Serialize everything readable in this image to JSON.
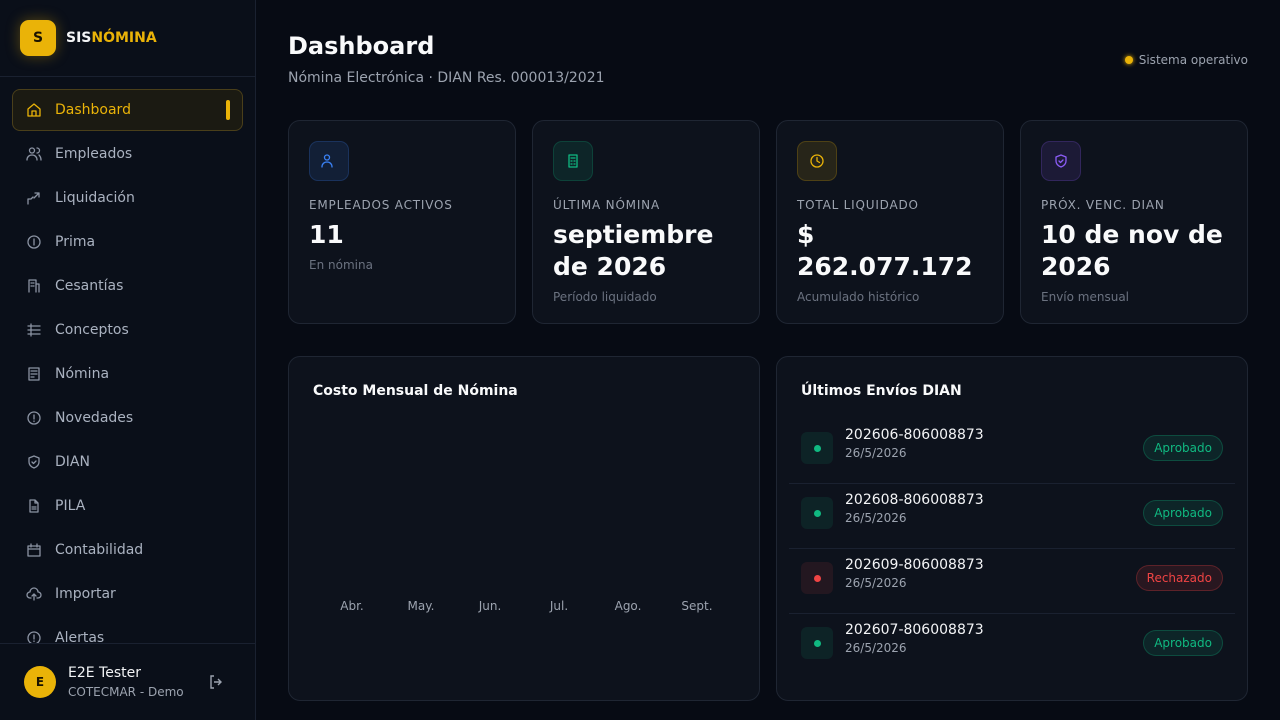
{
  "sidebar": {
    "logo_letter": "S",
    "brand_prefix": "SIS",
    "brand_suffix": "NÓMINA",
    "active_index": 0,
    "nav": [
      "Dashboard",
      "Empleados",
      "Liquidación",
      "Prima",
      "Cesantías",
      "Conceptos",
      "Nómina",
      "Novedades",
      "DIAN",
      "PILA",
      "Contabilidad",
      "Importar",
      "Alertas"
    ],
    "user": {
      "avatar": "E",
      "name": "E2E Tester",
      "org": "COTECMAR - Demo"
    }
  },
  "header": {
    "title": "Dashboard",
    "subtitle": "Nómina Electrónica · DIAN Res. 000013/2021",
    "status": "Sistema operativo"
  },
  "stats": [
    {
      "label": "EMPLEADOS ACTIVOS",
      "value": 11,
      "note": "En nómina",
      "color": "#3b82f6"
    },
    {
      "label": "ÚLTIMA NÓMINA",
      "value": "septiembre de 2026",
      "note": "Período liquidado",
      "color": "#10b981"
    },
    {
      "label": "TOTAL LIQUIDADO",
      "value": "$ 262.077.172",
      "note": "Acumulado histórico",
      "color": "#eab308"
    },
    {
      "label": "PRÓX. VENC. DIAN",
      "value": "10 de nov de 2026",
      "note": "Envío mensual",
      "color": "#8b5cf6"
    }
  ],
  "cost_chart": {
    "title": "Costo Mensual de Nómina",
    "categories": [
      "Abr.",
      "May.",
      "Jun.",
      "Jul.",
      "Ago.",
      "Sept."
    ]
  },
  "dian": {
    "title": "Últimos Envíos DIAN",
    "items": [
      {
        "id": "202606-806008873",
        "date": "26/5/2026",
        "status": "Aprobado",
        "color": "#10b981"
      },
      {
        "id": "202608-806008873",
        "date": "26/5/2026",
        "status": "Aprobado",
        "color": "#10b981"
      },
      {
        "id": "202609-806008873",
        "date": "26/5/2026",
        "status": "Rechazado",
        "color": "#ef4444"
      },
      {
        "id": "202607-806008873",
        "date": "26/5/2026",
        "status": "Aprobado",
        "color": "#10b981"
      }
    ]
  }
}
